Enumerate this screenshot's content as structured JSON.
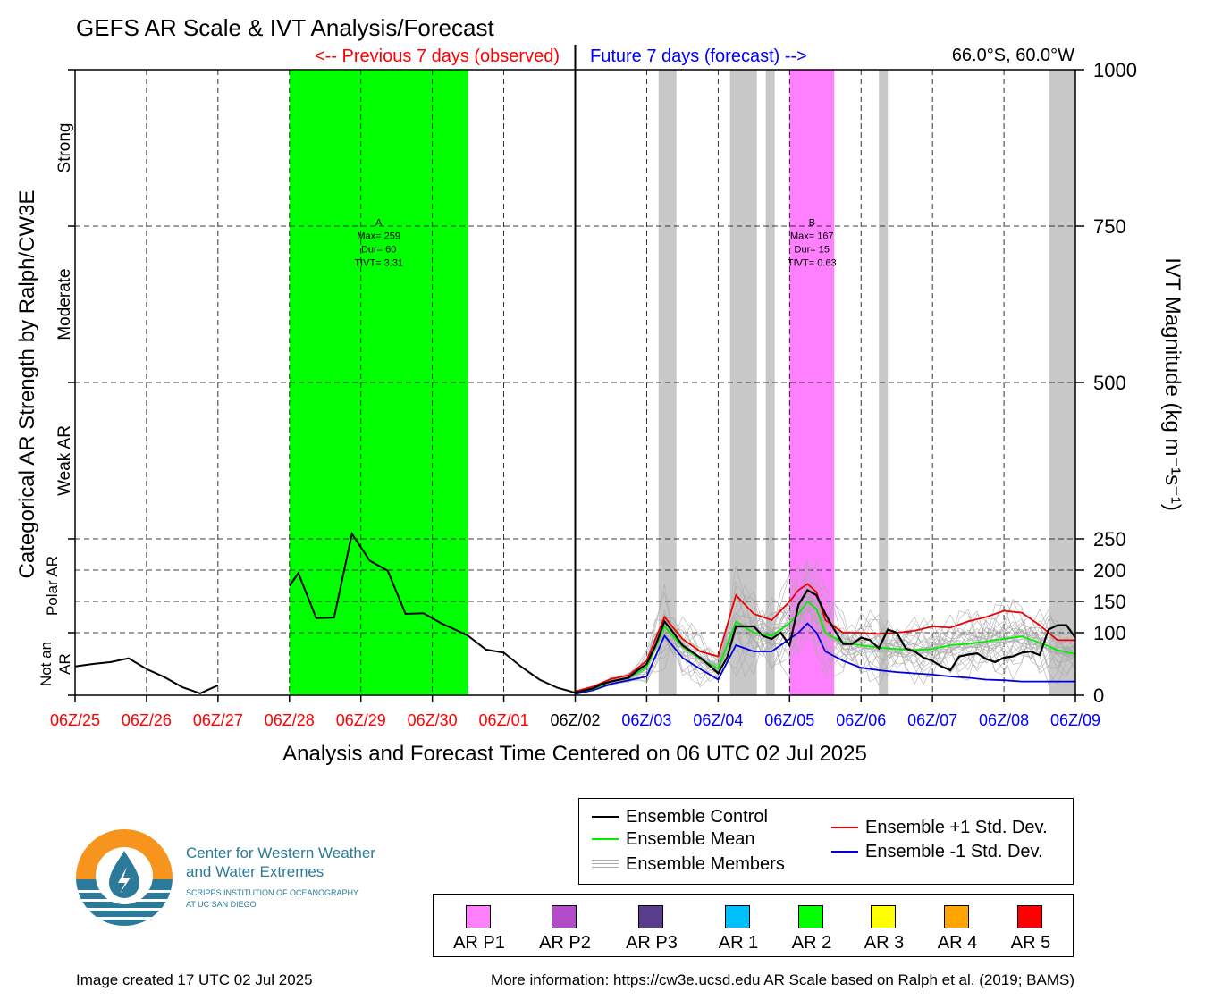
{
  "header": {
    "title": "GEFS AR Scale & IVT Analysis/Forecast",
    "previous_label": "<-- Previous 7 days (observed)",
    "future_label": "Future 7 days (forecast) -->",
    "location": "66.0°S, 60.0°W",
    "xlabel": "Analysis and Forecast Time Centered on 06 UTC 02 Jul 2025",
    "ylabel_left": "Categorical AR Strength by Ralph/CW3E"
  },
  "colors": {
    "observed_text": "#ff0000",
    "forecast_text": "#0000ff",
    "ar2_band": "#00ff00",
    "ar_p1_band": "#ff80ff",
    "uncertainty_band": "#c8c8c8",
    "control": "#000000",
    "mean": "#00ee00",
    "plus_sd": "#ee0000",
    "minus_sd": "#0000dd",
    "members": "#aaaaaa"
  },
  "chart_data": {
    "type": "line",
    "x_unit": "hours relative to 06 UTC 02 Jul 2025",
    "xlim": [
      -168,
      168
    ],
    "ylim": [
      0,
      1000
    ],
    "x_ticks": [
      {
        "t": -168,
        "label": "06Z/25",
        "period": "observed"
      },
      {
        "t": -144,
        "label": "06Z/26",
        "period": "observed"
      },
      {
        "t": -120,
        "label": "06Z/27",
        "period": "observed"
      },
      {
        "t": -96,
        "label": "06Z/28",
        "period": "observed"
      },
      {
        "t": -72,
        "label": "06Z/29",
        "period": "observed"
      },
      {
        "t": -48,
        "label": "06Z/30",
        "period": "observed"
      },
      {
        "t": -24,
        "label": "06Z/01",
        "period": "observed"
      },
      {
        "t": 0,
        "label": "06Z/02",
        "period": "now"
      },
      {
        "t": 24,
        "label": "06Z/03",
        "period": "forecast"
      },
      {
        "t": 48,
        "label": "06Z/04",
        "period": "forecast"
      },
      {
        "t": 72,
        "label": "06Z/05",
        "period": "forecast"
      },
      {
        "t": 96,
        "label": "06Z/06",
        "period": "forecast"
      },
      {
        "t": 120,
        "label": "06Z/07",
        "period": "forecast"
      },
      {
        "t": 144,
        "label": "06Z/08",
        "period": "forecast"
      },
      {
        "t": 168,
        "label": "06Z/09",
        "period": "forecast"
      }
    ],
    "y_ticks_right": [
      0,
      100,
      150,
      200,
      250,
      500,
      750,
      1000
    ],
    "ylabel_right": "IVT Magnitude (kg m⁻¹s⁻¹)",
    "category_labels": [
      {
        "label": "Strong",
        "y_center": 875
      },
      {
        "label": "Moderate",
        "y_center": 625
      },
      {
        "label": "Weak AR",
        "y_center": 375
      },
      {
        "label": "Polar AR",
        "y_center": 175
      },
      {
        "label": "Not an AR",
        "y_center": 50
      }
    ],
    "observed_series": [
      {
        "name": "",
        "segments": [
          [
            [
              -168,
              46
            ],
            [
              -162,
              50
            ],
            [
              -156,
              53
            ],
            [
              -150,
              59
            ],
            [
              -144,
              42
            ],
            [
              -138,
              29
            ],
            [
              -132,
              13
            ],
            [
              -126,
              3
            ],
            [
              -120,
              16
            ]
          ],
          [
            [
              -96,
              175
            ],
            [
              -93,
              195
            ],
            [
              -87,
              123
            ],
            [
              -81,
              124
            ],
            [
              -75,
              258
            ],
            [
              -69,
              215
            ],
            [
              -63,
              199
            ],
            [
              -57,
              130
            ],
            [
              -51,
              131
            ],
            [
              -45,
              115
            ],
            [
              -39,
              102
            ],
            [
              -36,
              95
            ],
            [
              -30,
              73
            ],
            [
              -24,
              68
            ],
            [
              -18,
              45
            ],
            [
              -12,
              25
            ],
            [
              -6,
              12
            ],
            [
              0,
              4
            ]
          ]
        ]
      }
    ],
    "forecast_series": [
      {
        "name": "Ensemble Control",
        "key": "control",
        "points": [
          [
            0,
            4
          ],
          [
            6,
            11
          ],
          [
            9,
            18
          ],
          [
            12,
            22
          ],
          [
            18,
            28
          ],
          [
            21,
            40
          ],
          [
            24,
            50
          ],
          [
            27,
            80
          ],
          [
            30,
            118
          ],
          [
            33,
            100
          ],
          [
            36,
            80
          ],
          [
            42,
            60
          ],
          [
            45,
            48
          ],
          [
            48,
            35
          ],
          [
            51,
            60
          ],
          [
            54,
            110
          ],
          [
            57,
            110
          ],
          [
            60,
            110
          ],
          [
            63,
            95
          ],
          [
            66,
            90
          ],
          [
            69,
            100
          ],
          [
            72,
            80
          ],
          [
            75,
            145
          ],
          [
            78,
            168
          ],
          [
            81,
            160
          ],
          [
            84,
            130
          ],
          [
            87,
            105
          ],
          [
            90,
            82
          ],
          [
            93,
            82
          ],
          [
            96,
            92
          ],
          [
            99,
            88
          ],
          [
            102,
            75
          ],
          [
            105,
            105
          ],
          [
            108,
            100
          ],
          [
            111,
            75
          ],
          [
            114,
            70
          ],
          [
            117,
            60
          ],
          [
            120,
            55
          ],
          [
            123,
            46
          ],
          [
            126,
            40
          ],
          [
            129,
            62
          ],
          [
            132,
            65
          ],
          [
            135,
            67
          ],
          [
            138,
            58
          ],
          [
            141,
            53
          ],
          [
            144,
            60
          ],
          [
            147,
            62
          ],
          [
            150,
            68
          ],
          [
            153,
            70
          ],
          [
            156,
            64
          ],
          [
            159,
            105
          ],
          [
            162,
            112
          ],
          [
            165,
            112
          ],
          [
            168,
            92
          ]
        ]
      },
      {
        "name": "Ensemble Mean",
        "key": "mean",
        "points": [
          [
            0,
            4
          ],
          [
            6,
            10
          ],
          [
            12,
            22
          ],
          [
            18,
            28
          ],
          [
            24,
            45
          ],
          [
            30,
            110
          ],
          [
            36,
            78
          ],
          [
            42,
            58
          ],
          [
            48,
            43
          ],
          [
            54,
            117
          ],
          [
            60,
            100
          ],
          [
            66,
            95
          ],
          [
            72,
            115
          ],
          [
            75,
            130
          ],
          [
            78,
            150
          ],
          [
            81,
            138
          ],
          [
            84,
            100
          ],
          [
            90,
            84
          ],
          [
            96,
            80
          ],
          [
            102,
            76
          ],
          [
            108,
            74
          ],
          [
            114,
            72
          ],
          [
            120,
            74
          ],
          [
            126,
            80
          ],
          [
            132,
            82
          ],
          [
            138,
            86
          ],
          [
            144,
            90
          ],
          [
            150,
            94
          ],
          [
            156,
            84
          ],
          [
            162,
            72
          ],
          [
            168,
            66
          ]
        ]
      },
      {
        "name": "Ensemble +1 Std. Dev.",
        "key": "plus_sd",
        "points": [
          [
            0,
            6
          ],
          [
            6,
            14
          ],
          [
            12,
            26
          ],
          [
            18,
            32
          ],
          [
            24,
            55
          ],
          [
            30,
            125
          ],
          [
            36,
            90
          ],
          [
            42,
            70
          ],
          [
            48,
            62
          ],
          [
            54,
            160
          ],
          [
            60,
            130
          ],
          [
            66,
            120
          ],
          [
            72,
            150
          ],
          [
            75,
            168
          ],
          [
            78,
            178
          ],
          [
            81,
            165
          ],
          [
            84,
            120
          ],
          [
            90,
            100
          ],
          [
            96,
            100
          ],
          [
            102,
            98
          ],
          [
            108,
            100
          ],
          [
            114,
            103
          ],
          [
            120,
            110
          ],
          [
            126,
            108
          ],
          [
            132,
            118
          ],
          [
            138,
            125
          ],
          [
            144,
            135
          ],
          [
            150,
            132
          ],
          [
            156,
            112
          ],
          [
            162,
            88
          ],
          [
            168,
            88
          ]
        ]
      },
      {
        "name": "Ensemble -1 Std. Dev.",
        "key": "minus_sd",
        "points": [
          [
            0,
            2
          ],
          [
            6,
            8
          ],
          [
            12,
            18
          ],
          [
            18,
            24
          ],
          [
            24,
            30
          ],
          [
            30,
            95
          ],
          [
            36,
            60
          ],
          [
            42,
            42
          ],
          [
            48,
            25
          ],
          [
            54,
            80
          ],
          [
            60,
            70
          ],
          [
            66,
            70
          ],
          [
            72,
            90
          ],
          [
            75,
            100
          ],
          [
            78,
            115
          ],
          [
            81,
            100
          ],
          [
            84,
            70
          ],
          [
            90,
            55
          ],
          [
            96,
            44
          ],
          [
            102,
            40
          ],
          [
            108,
            37
          ],
          [
            114,
            35
          ],
          [
            120,
            33
          ],
          [
            126,
            30
          ],
          [
            132,
            28
          ],
          [
            138,
            25
          ],
          [
            144,
            24
          ],
          [
            150,
            22
          ],
          [
            156,
            22
          ],
          [
            162,
            22
          ],
          [
            168,
            22
          ]
        ]
      }
    ],
    "member_count": 30,
    "events": [
      {
        "start": -96,
        "end": -36,
        "category": "AR 2",
        "label_lines": [
          "A",
          "Max= 259",
          "Dur= 60",
          "TIVT= 3.31"
        ]
      },
      {
        "start": 72,
        "end": 87,
        "category": "AR P1",
        "label_lines": [
          "B",
          "Max= 167",
          "Dur= 15",
          "TIVT= 0.63"
        ]
      }
    ],
    "uncertainty_periods": [
      [
        28,
        34
      ],
      [
        52,
        61
      ],
      [
        64,
        67
      ],
      [
        102,
        105
      ],
      [
        159,
        168
      ]
    ]
  },
  "legend": {
    "items": [
      {
        "label": "Ensemble Control",
        "key": "control"
      },
      {
        "label": "Ensemble Mean",
        "key": "mean"
      },
      {
        "label": "Ensemble Members",
        "key": "members"
      },
      {
        "label": "Ensemble +1 Std. Dev.",
        "key": "plus_sd"
      },
      {
        "label": "Ensemble -1 Std. Dev.",
        "key": "minus_sd"
      }
    ]
  },
  "categories": [
    {
      "label": "AR P1",
      "color": "#ff80ff"
    },
    {
      "label": "AR P2",
      "color": "#b44bc8"
    },
    {
      "label": "AR P3",
      "color": "#5a3c8c"
    },
    {
      "label": "AR 1",
      "color": "#00bfff"
    },
    {
      "label": "AR 2",
      "color": "#00ff00"
    },
    {
      "label": "AR 3",
      "color": "#ffff00"
    },
    {
      "label": "AR 4",
      "color": "#ffa500"
    },
    {
      "label": "AR 5",
      "color": "#ff0000"
    }
  ],
  "logo": {
    "line1": "Center for Western Weather",
    "line2": "and Water Extremes",
    "line3": "SCRIPPS INSTITUTION OF OCEANOGRAPHY",
    "line4": "AT UC SAN DIEGO",
    "orange": "#f7941d",
    "blue": "#2b7a99"
  },
  "footer": {
    "created": "Image created 17 UTC 02 Jul 2025",
    "more_info": "More information: https://cw3e.ucsd.edu AR Scale based on Ralph et al. (2019; BAMS)"
  }
}
